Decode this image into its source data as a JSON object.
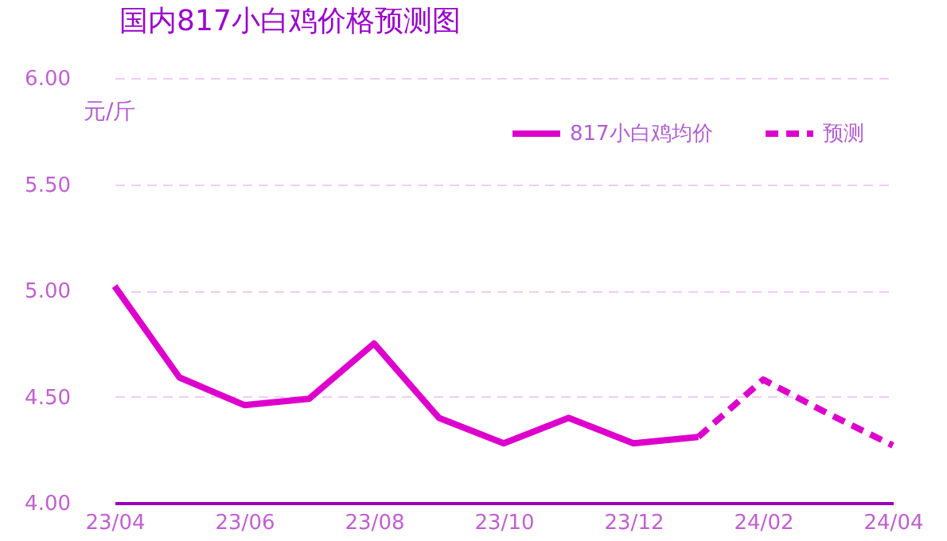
{
  "chart_data": {
    "type": "line",
    "title": "国内817小白鸡价格预测图",
    "ylabel": "元/斤",
    "categories": [
      "23/04",
      null,
      "23/06",
      null,
      "23/08",
      null,
      "23/10",
      null,
      "23/12",
      null,
      "24/02",
      null,
      "24/04"
    ],
    "series": [
      {
        "name": "817小白鸡均价",
        "color": "#dd00cc",
        "line_style": "solid",
        "values": [
          5.02,
          4.59,
          4.46,
          4.49,
          4.75,
          4.4,
          4.28,
          4.4,
          4.28,
          4.31,
          null,
          null,
          null
        ]
      },
      {
        "name": "预测",
        "color": "#dd00cc",
        "line_style": "dashed",
        "values": [
          null,
          null,
          null,
          null,
          null,
          null,
          null,
          null,
          null,
          4.31,
          4.58,
          4.42,
          4.27
        ]
      }
    ],
    "ylim": [
      4.0,
      6.0
    ],
    "yticks": [
      {
        "value": 4.0,
        "label": "4.00"
      },
      {
        "value": 4.5,
        "label": "4.50"
      },
      {
        "value": 5.0,
        "label": "5.00"
      },
      {
        "value": 5.5,
        "label": "5.50"
      },
      {
        "value": 6.0,
        "label": "6.00"
      }
    ],
    "grid": "y",
    "legend": "top right",
    "marker": "none"
  }
}
